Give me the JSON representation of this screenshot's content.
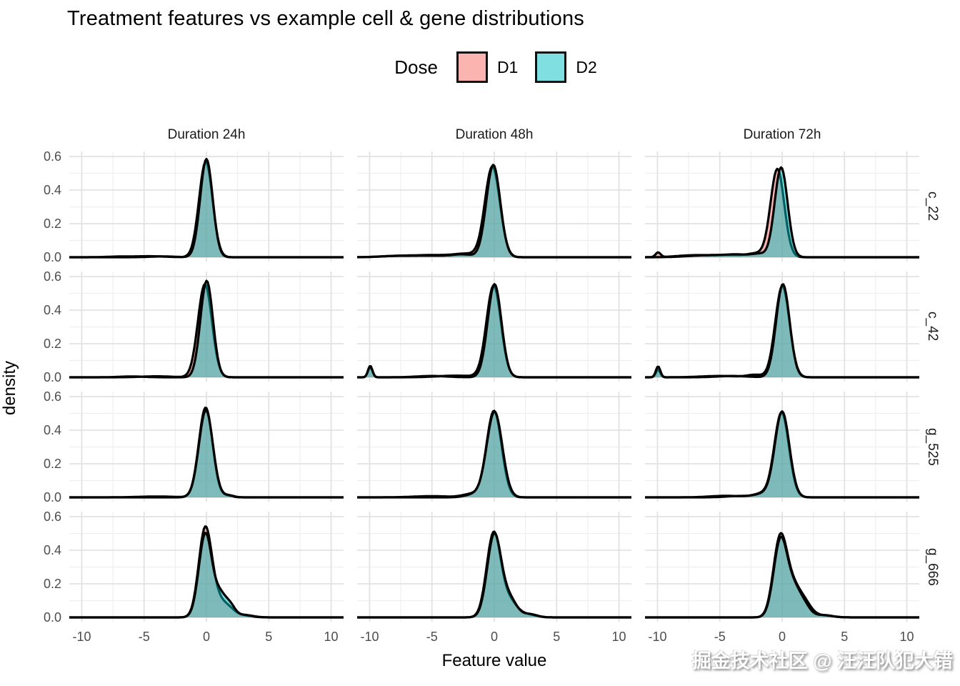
{
  "title": "Treatment features vs example cell & gene distributions",
  "legend": {
    "title": "Dose",
    "items": [
      {
        "label": "D1",
        "color": "#F8766D",
        "fill_alpha": 0.55
      },
      {
        "label": "D2",
        "color": "#00BFC4",
        "fill_alpha": 0.5
      }
    ]
  },
  "axes": {
    "x_label": "Feature value",
    "y_label": "density",
    "x_tick_labels": [
      "-10",
      "-5",
      "0",
      "5",
      "10"
    ],
    "y_tick_labels": [
      "0.0",
      "0.2",
      "0.4",
      "0.6"
    ]
  },
  "watermark": "掘金技术社区 @ 汪汪队犯大错",
  "chart_data": {
    "type": "area",
    "kind": "overlaid density (KDE) curves, faceted grid",
    "title": "Treatment features vs example cell & gene distributions",
    "xlabel": "Feature value",
    "ylabel": "density",
    "legend_title": "Dose",
    "legend_position": "top",
    "x_range": [
      -11,
      11
    ],
    "y_range": [
      0,
      0.63
    ],
    "x_major_ticks": [
      -10,
      -5,
      0,
      5,
      10
    ],
    "x_minor_ticks": [
      -7.5,
      -2.5,
      2.5,
      7.5
    ],
    "y_major_ticks": [
      0,
      0.2,
      0.4,
      0.6
    ],
    "y_minor_ticks": [
      0.1,
      0.3,
      0.5
    ],
    "grid": "major and minor, light gray on white (theme_minimal)",
    "facet_columns": [
      "Duration 24h",
      "Duration 48h",
      "Duration 72h"
    ],
    "facet_rows": [
      "c_22",
      "c_42",
      "g_525",
      "g_666"
    ],
    "series": [
      {
        "name": "D1",
        "color": "#F8766D",
        "fill_alpha": 0.55,
        "outline": "#000000"
      },
      {
        "name": "D2",
        "color": "#00BFC4",
        "fill_alpha": 0.5,
        "outline": "#000000"
      }
    ],
    "curve_model": "each curve = sum of gaussian components [center_x, peak_density, sd]",
    "panels": [
      {
        "row": "c_22",
        "col": "Duration 24h",
        "peak": {
          "x": 0,
          "density": 0.58
        },
        "curves": {
          "D1": [
            [
              -0.05,
              0.57,
              0.54
            ],
            [
              -4.5,
              0.006,
              1.2
            ],
            [
              -7,
              0.004,
              1.0
            ]
          ],
          "D2": [
            [
              0.0,
              0.585,
              0.5
            ],
            [
              -3.5,
              0.005,
              1.0
            ]
          ]
        }
      },
      {
        "row": "c_22",
        "col": "Duration 48h",
        "peak": {
          "x": -0.1,
          "density": 0.55
        },
        "curves": {
          "D1": [
            [
              -0.15,
              0.54,
              0.6
            ],
            [
              -2.2,
              0.018,
              0.9
            ],
            [
              -4.5,
              0.012,
              1.5
            ],
            [
              -7.5,
              0.008,
              1.5
            ]
          ],
          "D2": [
            [
              -0.08,
              0.55,
              0.56
            ],
            [
              -2.5,
              0.015,
              0.8
            ],
            [
              -5,
              0.01,
              1.5
            ],
            [
              -8,
              0.007,
              1.2
            ]
          ]
        }
      },
      {
        "row": "c_22",
        "col": "Duration 72h",
        "peak": {
          "x": -0.2,
          "density": 0.54
        },
        "left_spike": {
          "x": -10,
          "density": 0.03
        },
        "curves": {
          "D1": [
            [
              -0.38,
              0.525,
              0.55
            ],
            [
              -9.95,
              0.028,
              0.2
            ],
            [
              -7,
              0.012,
              1.4
            ],
            [
              -4,
              0.013,
              1.2
            ],
            [
              -2,
              0.02,
              0.7
            ]
          ],
          "D2": [
            [
              -0.08,
              0.535,
              0.52
            ],
            [
              -6,
              0.012,
              1.5
            ],
            [
              -3.5,
              0.014,
              1.0
            ],
            [
              -1.8,
              0.018,
              0.6
            ]
          ]
        }
      },
      {
        "row": "c_42",
        "col": "Duration 24h",
        "peak": {
          "x": 0,
          "density": 0.57
        },
        "curves": {
          "D1": [
            [
              -0.12,
              0.555,
              0.56
            ],
            [
              -4,
              0.006,
              1.2
            ]
          ],
          "D2": [
            [
              0.02,
              0.575,
              0.5
            ],
            [
              -6,
              0.005,
              1.0
            ]
          ]
        }
      },
      {
        "row": "c_42",
        "col": "Duration 48h",
        "peak": {
          "x": 0,
          "density": 0.55
        },
        "left_spike": {
          "x": -10,
          "density": 0.07
        },
        "curves": {
          "D1": [
            [
              -0.05,
              0.545,
              0.58
            ],
            [
              -9.95,
              0.06,
              0.18
            ],
            [
              -3,
              0.01,
              1.5
            ]
          ],
          "D2": [
            [
              0.02,
              0.555,
              0.55
            ],
            [
              -9.95,
              0.068,
              0.18
            ],
            [
              -5,
              0.008,
              1.2
            ]
          ]
        }
      },
      {
        "row": "c_42",
        "col": "Duration 72h",
        "peak": {
          "x": 0.05,
          "density": 0.55
        },
        "left_spike": {
          "x": -10,
          "density": 0.07
        },
        "curves": {
          "D1": [
            [
              0.02,
              0.545,
              0.57
            ],
            [
              -9.95,
              0.045,
              0.18
            ],
            [
              -2.2,
              0.014,
              0.6
            ],
            [
              -5,
              0.008,
              1.5
            ]
          ],
          "D2": [
            [
              0.06,
              0.555,
              0.54
            ],
            [
              -9.95,
              0.065,
              0.18
            ],
            [
              -4,
              0.008,
              1.2
            ]
          ]
        }
      },
      {
        "row": "g_525",
        "col": "Duration 24h",
        "peak": {
          "x": -0.05,
          "density": 0.53
        },
        "curves": {
          "D1": [
            [
              -0.06,
              0.535,
              0.55
            ],
            [
              1.7,
              0.01,
              0.4
            ],
            [
              -4,
              0.005,
              1.5
            ]
          ],
          "D2": [
            [
              -0.04,
              0.52,
              0.56
            ],
            [
              1.8,
              0.012,
              0.4
            ]
          ]
        }
      },
      {
        "row": "g_525",
        "col": "Duration 48h",
        "peak": {
          "x": 0,
          "density": 0.52
        },
        "curves": {
          "D1": [
            [
              -0.02,
              0.515,
              0.6
            ],
            [
              -1.8,
              0.02,
              0.7
            ],
            [
              -5,
              0.007,
              1.5
            ]
          ],
          "D2": [
            [
              0.02,
              0.51,
              0.62
            ],
            [
              -1.6,
              0.018,
              0.7
            ]
          ]
        }
      },
      {
        "row": "g_525",
        "col": "Duration 72h",
        "peak": {
          "x": 0,
          "density": 0.51
        },
        "curves": {
          "D1": [
            [
              -0.04,
              0.505,
              0.58
            ],
            [
              -1.6,
              0.022,
              0.7
            ],
            [
              -4.5,
              0.009,
              1.3
            ]
          ],
          "D2": [
            [
              0.0,
              0.51,
              0.58
            ],
            [
              -1.5,
              0.02,
              0.7
            ],
            [
              -3.5,
              0.008,
              1.0
            ]
          ]
        }
      },
      {
        "row": "g_666",
        "col": "Duration 24h",
        "peak": {
          "x": -0.1,
          "density": 0.53
        },
        "right_shoulder": {
          "x": 1.1,
          "density": 0.13
        },
        "curves": {
          "D1": [
            [
              -0.1,
              0.525,
              0.52
            ],
            [
              0.9,
              0.09,
              0.55
            ],
            [
              1.8,
              0.045,
              0.5
            ],
            [
              2.9,
              0.012,
              0.7
            ]
          ],
          "D2": [
            [
              -0.08,
              0.5,
              0.52
            ],
            [
              1.1,
              0.125,
              0.45
            ],
            [
              1.9,
              0.065,
              0.4
            ],
            [
              3.0,
              0.015,
              0.7
            ]
          ]
        }
      },
      {
        "row": "g_666",
        "col": "Duration 48h",
        "peak": {
          "x": 0,
          "density": 0.5
        },
        "right_shoulder": {
          "x": 1.2,
          "density": 0.1
        },
        "curves": {
          "D1": [
            [
              -0.05,
              0.5,
              0.56
            ],
            [
              1.2,
              0.095,
              0.6
            ],
            [
              2.6,
              0.018,
              0.7
            ]
          ],
          "D2": [
            [
              0.0,
              0.495,
              0.56
            ],
            [
              1.25,
              0.105,
              0.55
            ],
            [
              2.8,
              0.02,
              0.6
            ]
          ]
        }
      },
      {
        "row": "g_666",
        "col": "Duration 72h",
        "peak": {
          "x": -0.15,
          "density": 0.48
        },
        "right_shoulder": {
          "x": 0.9,
          "density": 0.17
        },
        "curves": {
          "D1": [
            [
              -0.15,
              0.475,
              0.55
            ],
            [
              0.9,
              0.15,
              0.55
            ],
            [
              1.8,
              0.08,
              0.55
            ],
            [
              3.2,
              0.012,
              0.8
            ]
          ],
          "D2": [
            [
              -0.12,
              0.465,
              0.55
            ],
            [
              0.95,
              0.14,
              0.5
            ],
            [
              1.75,
              0.07,
              0.5
            ],
            [
              3.3,
              0.014,
              0.7
            ]
          ]
        }
      }
    ]
  }
}
